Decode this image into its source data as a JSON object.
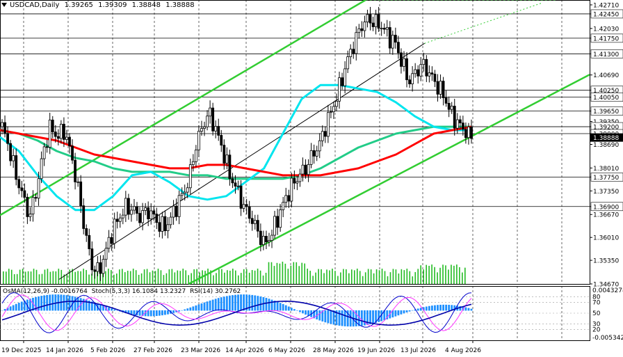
{
  "header": {
    "symbol": "USDCAD,Daily",
    "open": "1.39265",
    "high": "1.39309",
    "low": "1.38848",
    "close": "1.38888"
  },
  "oscillator_header": {
    "osma": "OsMA(12,26,9) -0.0016764",
    "stoch": "Stoch(5,3,3) 16.1084 13.2327",
    "rsi": "RSI(14) 30.2762"
  },
  "colors": {
    "bull_candle": "#ffffff",
    "bear_candle": "#000000",
    "volume": "#22bb22",
    "ema_long": "#ff0000",
    "ema_mid": "#22cc88",
    "ema_short": "#00e5ee",
    "channel": "#32cd32",
    "trendline": "#000000",
    "osma": "#1e90ff",
    "stoch_main": "#0000cc",
    "stoch_signal": "#ff33ff",
    "rsi": "#0000aa"
  },
  "chart_data": {
    "type": "candlestick",
    "price_axis_ticks": [
      "1.42710",
      "1.42450",
      "1.42030",
      "1.41750",
      "1.41300",
      "1.40690",
      "1.40250",
      "1.40050",
      "1.39650",
      "1.39350",
      "1.39200",
      "1.39000",
      "1.38690",
      "1.38010",
      "1.37750",
      "1.37350",
      "1.36900",
      "1.36670",
      "1.36010",
      "1.35350",
      "1.34670"
    ],
    "highlighted_levels": [
      "1.42450",
      "1.41750",
      "1.41300",
      "1.40250",
      "1.40050",
      "1.39650",
      "1.39200",
      "1.39000",
      "1.37750",
      "1.36900"
    ],
    "price_range": [
      1.3467,
      1.4285
    ],
    "date_labels": [
      "19 Dec 2025",
      "14 Jan 2026",
      "5 Feb 2026",
      "27 Feb 2026",
      "23 Mar 2026",
      "14 Apr 2026",
      "6 May 2026",
      "28 May 2026",
      "19 Jun 2026",
      "13 Jul 2026",
      "4 Aug 2026"
    ],
    "oscillator_axis_ticks": [
      "0.0043278",
      "80",
      "70",
      "50",
      "30",
      "20",
      "-0.0053423"
    ],
    "oscillator_range": [
      -0.0053423,
      0.0043278
    ],
    "close_path": [
      1.392,
      1.386,
      1.378,
      1.372,
      1.366,
      1.374,
      1.385,
      1.392,
      1.389,
      1.391,
      1.384,
      1.374,
      1.362,
      1.352,
      1.35,
      1.356,
      1.362,
      1.366,
      1.369,
      1.368,
      1.366,
      1.368,
      1.366,
      1.363,
      1.364,
      1.368,
      1.372,
      1.376,
      1.386,
      1.392,
      1.396,
      1.391,
      1.385,
      1.378,
      1.374,
      1.369,
      1.366,
      1.362,
      1.358,
      1.361,
      1.366,
      1.371,
      1.375,
      1.378,
      1.38,
      1.384,
      1.387,
      1.393,
      1.398,
      1.404,
      1.411,
      1.416,
      1.421,
      1.423,
      1.422,
      1.421,
      1.418,
      1.416,
      1.41,
      1.405,
      1.408,
      1.41,
      1.407,
      1.404,
      1.401,
      1.396,
      1.393,
      1.391,
      1.3889
    ],
    "ema_long": [
      1.391,
      1.39,
      1.389,
      1.388,
      1.386,
      1.384,
      1.383,
      1.382,
      1.381,
      1.38,
      1.38,
      1.381,
      1.381,
      1.38,
      1.379,
      1.378,
      1.378,
      1.378,
      1.379,
      1.38,
      1.382,
      1.384,
      1.387,
      1.39,
      1.391,
      1.392
    ],
    "ema_mid": [
      1.391,
      1.39,
      1.388,
      1.385,
      1.383,
      1.382,
      1.38,
      1.379,
      1.379,
      1.379,
      1.378,
      1.378,
      1.377,
      1.377,
      1.377,
      1.377,
      1.378,
      1.38,
      1.383,
      1.386,
      1.388,
      1.39,
      1.391,
      1.392,
      1.392,
      1.392
    ],
    "ema_short": [
      1.389,
      1.385,
      1.378,
      1.372,
      1.368,
      1.368,
      1.372,
      1.378,
      1.379,
      1.376,
      1.372,
      1.371,
      1.372,
      1.376,
      1.38,
      1.39,
      1.4,
      1.404,
      1.404,
      1.403,
      1.402,
      1.399,
      1.395,
      1.392,
      1.391,
      1.391
    ],
    "channel_upper": [
      [
        1.3665,
        0
      ],
      [
        1.4285,
        0.62
      ]
    ],
    "channel_lower": [
      [
        1.3467,
        0.32
      ],
      [
        1.407,
        1.0
      ]
    ],
    "trendline": [
      [
        1.348,
        0.1
      ],
      [
        1.416,
        0.72
      ]
    ]
  }
}
